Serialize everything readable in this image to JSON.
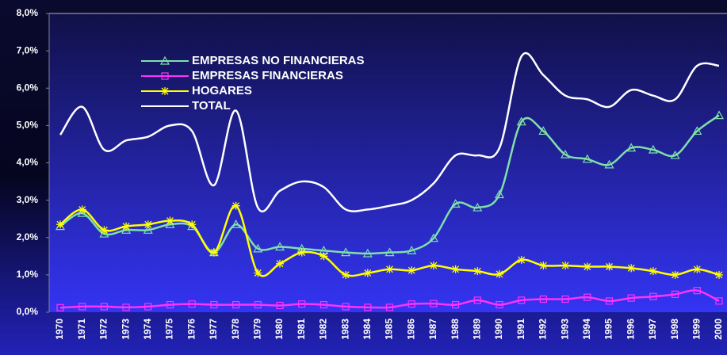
{
  "chart_data": {
    "type": "line",
    "categories": [
      "1970",
      "1971",
      "1972",
      "1973",
      "1974",
      "1975",
      "1976",
      "1977",
      "1978",
      "1979",
      "1980",
      "1981",
      "1982",
      "1983",
      "1984",
      "1985",
      "1986",
      "1987",
      "1988",
      "1989",
      "1990",
      "1991",
      "1992",
      "1993",
      "1994",
      "1995",
      "1996",
      "1997",
      "1998",
      "1999",
      "2000"
    ],
    "series": [
      {
        "name": "EMPRESAS NO FINANCIERAS",
        "color": "#7fe0a8",
        "marker": "triangle",
        "values": [
          2.3,
          2.65,
          2.1,
          2.2,
          2.2,
          2.35,
          2.3,
          1.6,
          2.35,
          1.7,
          1.75,
          1.7,
          1.65,
          1.6,
          1.57,
          1.6,
          1.65,
          1.98,
          2.9,
          2.8,
          3.15,
          5.1,
          4.85,
          4.22,
          4.1,
          3.95,
          4.4,
          4.35,
          4.2,
          4.85,
          5.27
        ]
      },
      {
        "name": "EMPRESAS FINANCIERAS",
        "color": "#ff33ff",
        "marker": "square",
        "values": [
          0.12,
          0.15,
          0.15,
          0.13,
          0.15,
          0.2,
          0.22,
          0.2,
          0.2,
          0.2,
          0.18,
          0.22,
          0.2,
          0.15,
          0.13,
          0.13,
          0.22,
          0.23,
          0.2,
          0.32,
          0.2,
          0.32,
          0.35,
          0.35,
          0.4,
          0.3,
          0.38,
          0.42,
          0.48,
          0.58,
          0.3
        ]
      },
      {
        "name": "HOGARES",
        "color": "#ffff00",
        "marker": "star",
        "values": [
          2.35,
          2.75,
          2.2,
          2.3,
          2.35,
          2.45,
          2.35,
          1.6,
          2.85,
          1.05,
          1.3,
          1.6,
          1.5,
          1.0,
          1.05,
          1.15,
          1.12,
          1.25,
          1.15,
          1.1,
          1.02,
          1.4,
          1.25,
          1.25,
          1.22,
          1.22,
          1.18,
          1.1,
          1.0,
          1.15,
          1.0
        ]
      },
      {
        "name": "TOTAL",
        "color": "#ffffff",
        "marker": "none",
        "values": [
          4.75,
          5.5,
          4.35,
          4.6,
          4.7,
          5.0,
          4.85,
          3.4,
          5.4,
          2.8,
          3.25,
          3.5,
          3.35,
          2.75,
          2.75,
          2.85,
          3.0,
          3.45,
          4.2,
          4.2,
          4.4,
          6.85,
          6.35,
          5.8,
          5.7,
          5.5,
          5.95,
          5.8,
          5.7,
          6.6,
          6.6
        ]
      }
    ],
    "ylim": [
      0,
      8
    ],
    "yticks": [
      {
        "value": 0,
        "label": "0,0%"
      },
      {
        "value": 1,
        "label": "1,0%"
      },
      {
        "value": 2,
        "label": "2,0%"
      },
      {
        "value": 3,
        "label": "3,0%"
      },
      {
        "value": 4,
        "label": "4,0%"
      },
      {
        "value": 5,
        "label": "5,0%"
      },
      {
        "value": 6,
        "label": "6,0%"
      },
      {
        "value": 7,
        "label": "7,0%"
      },
      {
        "value": 8,
        "label": "8,0%"
      }
    ],
    "grid": false,
    "legend": "upper left"
  }
}
